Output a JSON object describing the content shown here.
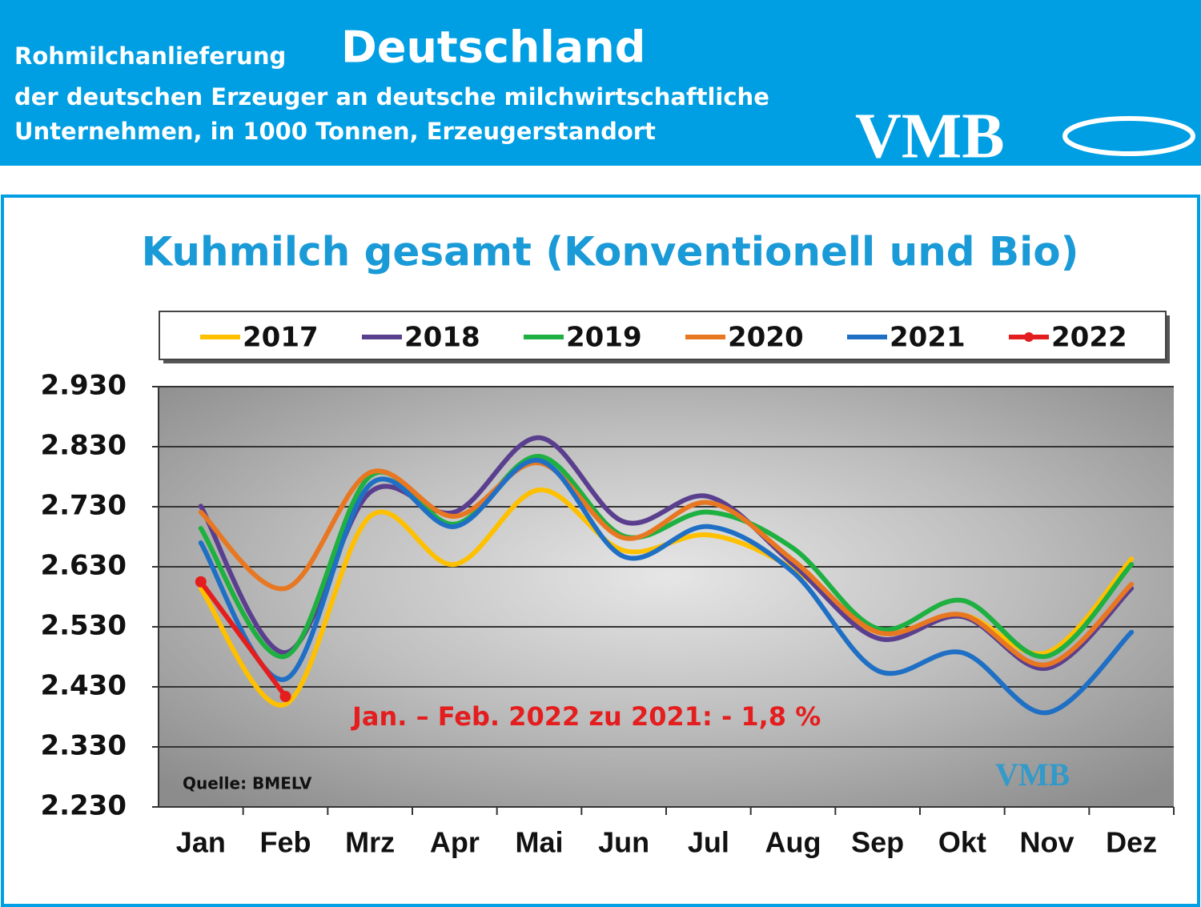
{
  "header": {
    "line1a": "Rohmilchanlieferung",
    "line1b": "Deutschland",
    "line2": "der deutschen Erzeuger an deutsche milchwirtschaftliche",
    "line3": "Unternehmen, in 1000 Tonnen, Erzeugerstandort",
    "logo": "VMB"
  },
  "chart_data": {
    "type": "line",
    "title": "Kuhmilch gesamt (Konventionell und Bio)",
    "annotation": "Jan. – Feb. 2022 zu 2021: - 1,8 %",
    "source": "Quelle: BMELV",
    "categories": [
      "Jan",
      "Feb",
      "Mrz",
      "Apr",
      "Mai",
      "Jun",
      "Jul",
      "Aug",
      "Sep",
      "Okt",
      "Nov",
      "Dez"
    ],
    "series": [
      {
        "name": "2017",
        "color": "#ffc000",
        "values": [
          2594,
          2401,
          2714,
          2634,
          2758,
          2657,
          2683,
          2627,
          2521,
          2550,
          2487,
          2643
        ]
      },
      {
        "name": "2018",
        "color": "#5b3f8f",
        "values": [
          2731,
          2487,
          2754,
          2721,
          2845,
          2705,
          2747,
          2634,
          2511,
          2547,
          2461,
          2594
        ]
      },
      {
        "name": "2019",
        "color": "#1eb040",
        "values": [
          2694,
          2481,
          2781,
          2701,
          2814,
          2681,
          2721,
          2661,
          2527,
          2574,
          2481,
          2634
        ]
      },
      {
        "name": "2020",
        "color": "#e87722",
        "values": [
          2721,
          2594,
          2787,
          2714,
          2803,
          2678,
          2737,
          2641,
          2521,
          2550,
          2467,
          2601
        ]
      },
      {
        "name": "2021",
        "color": "#1f6fc5",
        "values": [
          2670,
          2443,
          2767,
          2697,
          2807,
          2647,
          2697,
          2621,
          2457,
          2487,
          2387,
          2521
        ]
      },
      {
        "name": "2022",
        "color": "#e41e1e",
        "values": [
          2605,
          2414,
          null,
          null,
          null,
          null,
          null,
          null,
          null,
          null,
          null,
          null
        ],
        "markers": true
      }
    ],
    "ylim": [
      2230,
      2930
    ],
    "yticks": [
      {
        "value": 2230,
        "label": "2.230"
      },
      {
        "value": 2330,
        "label": "2.330"
      },
      {
        "value": 2430,
        "label": "2.430"
      },
      {
        "value": 2530,
        "label": "2.530"
      },
      {
        "value": 2630,
        "label": "2.630"
      },
      {
        "value": 2730,
        "label": "2.730"
      },
      {
        "value": 2830,
        "label": "2.830"
      },
      {
        "value": 2930,
        "label": "2.930"
      }
    ],
    "grid": true
  }
}
